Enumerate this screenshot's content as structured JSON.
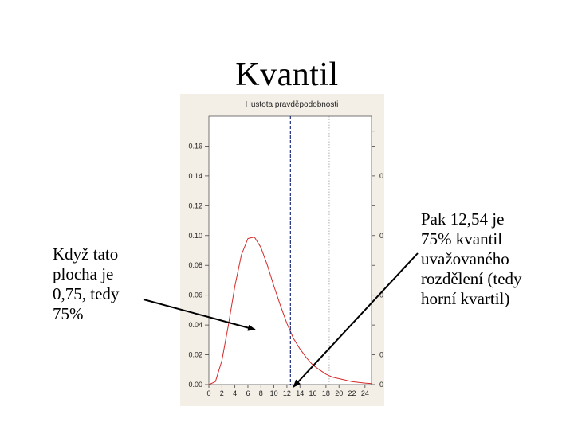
{
  "slide": {
    "title": "Kvantil",
    "left_note": "Když tato\nplocha je\n0,75, tedy\n75%",
    "right_note": "Pak 12,54 je\n75% kvantil\nuvažovaného\nrozdělení (tedy\nhorní kvartil)"
  },
  "colors": {
    "panel_background": "#f4efe6",
    "curve": "#d42a2a",
    "quantile_line": "#1f2e7a",
    "grid": "#8a8a8a",
    "arrow": "#000000"
  },
  "chart_data": {
    "type": "line",
    "title": "Hustota pravděpodobnosti",
    "xlabel": "",
    "ylabel": "",
    "xlim": [
      0,
      25
    ],
    "ylim": [
      0,
      0.18
    ],
    "x_ticks": [
      "0",
      "2",
      "4",
      "6",
      "8",
      "10",
      "12",
      "14",
      "16",
      "18",
      "20",
      "22",
      "24"
    ],
    "x_tick_values": [
      0,
      2,
      4,
      6,
      8,
      10,
      12,
      14,
      16,
      18,
      20,
      22,
      24
    ],
    "y_ticks": [
      "0.00",
      "0.02",
      "0.04",
      "0.06",
      "0.08",
      "0.10",
      "0.12",
      "0.14",
      "0.16"
    ],
    "y_tick_values": [
      0,
      0.02,
      0.04,
      0.06,
      0.08,
      0.1,
      0.12,
      0.14,
      0.16
    ],
    "right_axis_tick_text": "0",
    "vertical_gridlines_x": [
      6.3,
      18.5
    ],
    "quantile_x": 12.54,
    "grid": true,
    "series": [
      {
        "values_x": [
          0,
          1,
          2,
          3,
          4,
          5,
          6,
          7,
          8,
          9,
          10,
          11,
          12,
          13,
          14,
          15,
          16,
          17,
          18,
          19,
          20,
          21,
          22,
          23,
          24,
          25
        ],
        "values_y": [
          0,
          0.002,
          0.016,
          0.04,
          0.066,
          0.087,
          0.098,
          0.099,
          0.092,
          0.08,
          0.066,
          0.053,
          0.041,
          0.031,
          0.024,
          0.018,
          0.013,
          0.01,
          0.007,
          0.005,
          0.004,
          0.003,
          0.002,
          0.0015,
          0.001,
          0.0007
        ]
      }
    ]
  }
}
